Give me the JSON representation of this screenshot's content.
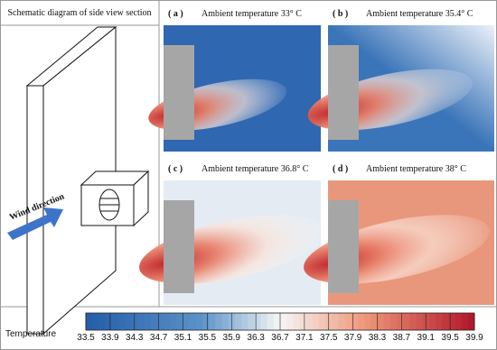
{
  "figure": {
    "schematic": {
      "title": "Schematic diagram of side view section",
      "arrow_label": "Wind direction"
    },
    "panels": [
      {
        "label": "( a )",
        "caption": "Ambient temperature 33° C",
        "background": "#2f67b1"
      },
      {
        "label": "( b )",
        "caption": "Ambient temperature 35.4° C",
        "background": "#3b75b9"
      },
      {
        "label": "( c )",
        "caption": "Ambient temperature 36.8° C",
        "background": "#e4ebf3"
      },
      {
        "label": "( d )",
        "caption": "Ambient temperature 38° C",
        "background": "#e9977c"
      }
    ],
    "colorbar": {
      "title": "Temperature",
      "ticks": [
        33.5,
        33.9,
        34.3,
        34.7,
        35.1,
        35.5,
        35.9,
        36.3,
        36.7,
        37.1,
        37.5,
        37.9,
        38.3,
        38.7,
        39.1,
        39.5,
        39.9
      ]
    }
  }
}
